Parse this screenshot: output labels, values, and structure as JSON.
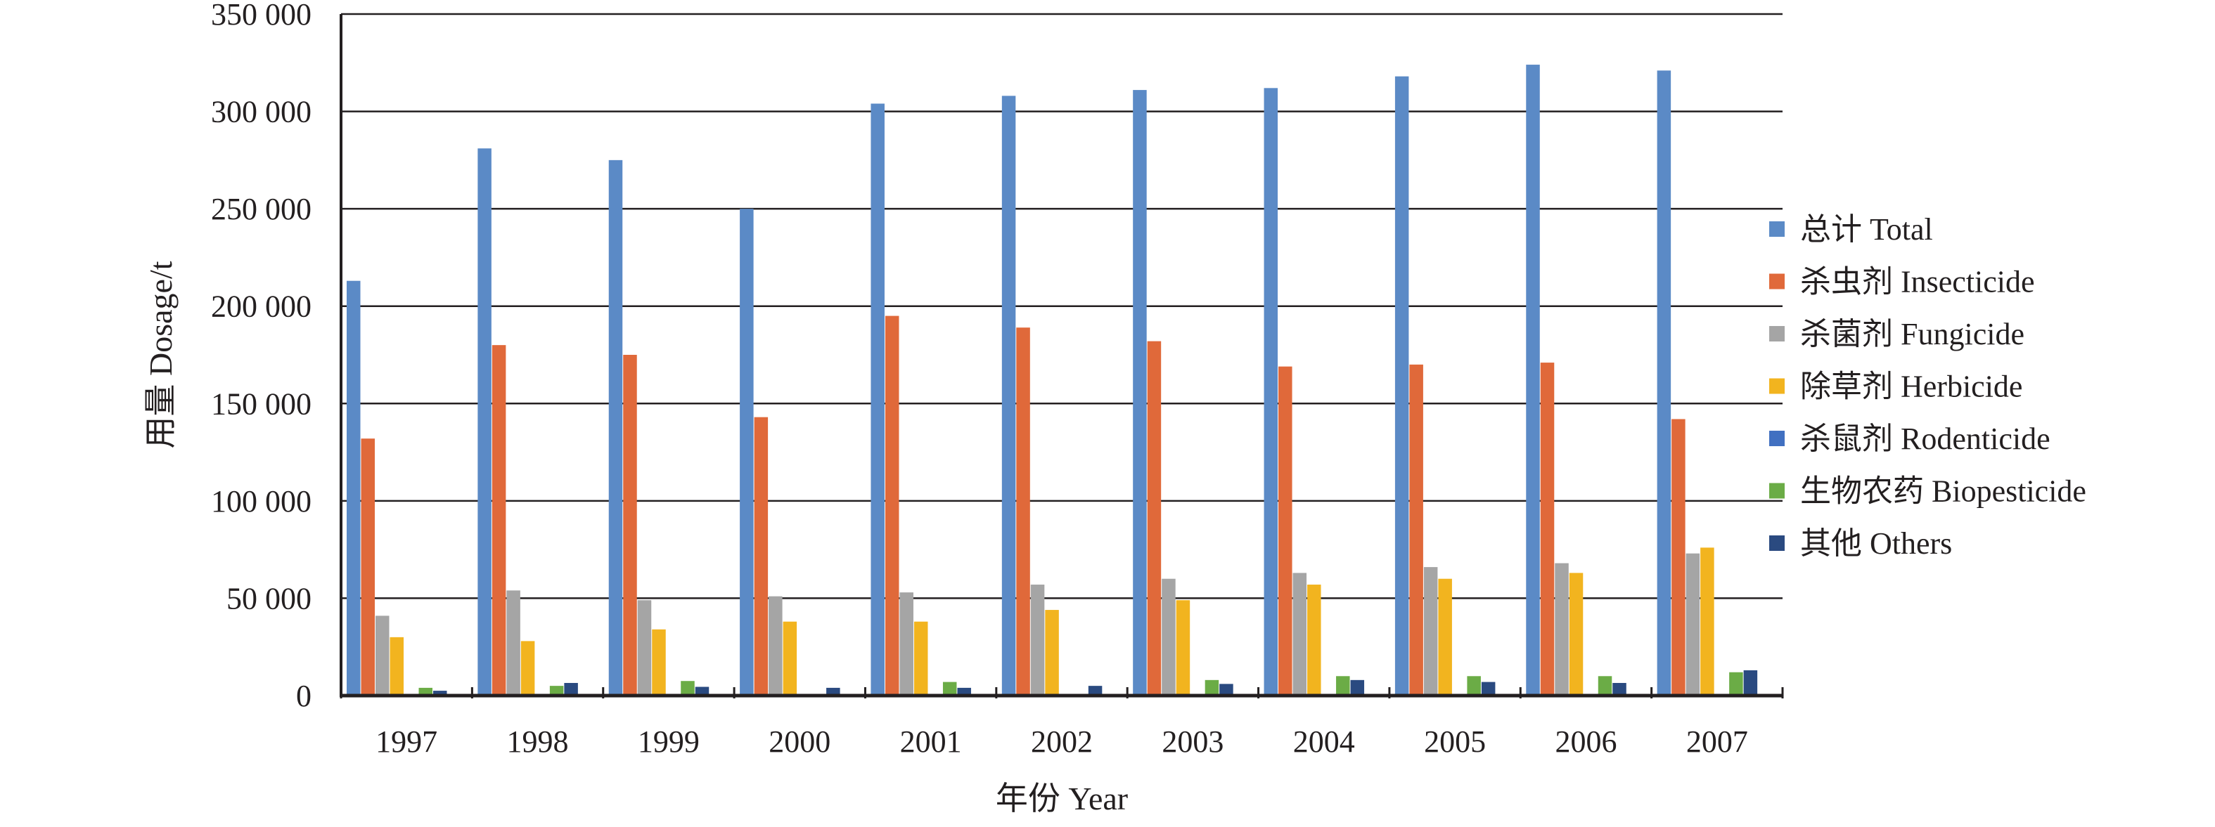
{
  "chart_data": {
    "type": "bar",
    "title": "",
    "xlabel": "年份 Year",
    "ylabel": "用量 Dosage/t",
    "ylim": [
      0,
      350000
    ],
    "yticks": [
      0,
      50000,
      100000,
      150000,
      200000,
      250000,
      300000,
      350000
    ],
    "ytick_labels": [
      "0",
      "50 000",
      "100 000",
      "150 000",
      "200 000",
      "250 000",
      "300 000",
      "350 000"
    ],
    "grid": "horizontal",
    "legend_position": "right",
    "categories": [
      "1997",
      "1998",
      "1999",
      "2000",
      "2001",
      "2002",
      "2003",
      "2004",
      "2005",
      "2006",
      "2007"
    ],
    "series": [
      {
        "name": "总计 Total",
        "color": "#5b8ac6",
        "values": [
          213000,
          281000,
          275000,
          250000,
          304000,
          308000,
          311000,
          312000,
          318000,
          324000,
          321000
        ]
      },
      {
        "name": "杀虫剂 Insecticide",
        "color": "#e0693a",
        "values": [
          132000,
          180000,
          175000,
          143000,
          195000,
          189000,
          182000,
          169000,
          170000,
          171000,
          142000
        ]
      },
      {
        "name": "杀菌剂 Fungicide",
        "color": "#a5a5a5",
        "values": [
          41000,
          54000,
          49000,
          51000,
          53000,
          57000,
          60000,
          63000,
          66000,
          68000,
          73000
        ]
      },
      {
        "name": "除草剂 Herbicide",
        "color": "#f2b41f",
        "values": [
          30000,
          28000,
          34000,
          38000,
          38000,
          44000,
          49000,
          57000,
          60000,
          63000,
          76000
        ]
      },
      {
        "name": "杀鼠剂 Rodenticide",
        "color": "#4170c1",
        "values": [
          300,
          300,
          300,
          300,
          300,
          800,
          800,
          800,
          800,
          800,
          800
        ]
      },
      {
        "name": "生物农药 Biopesticide",
        "color": "#6bac46",
        "values": [
          4000,
          5000,
          7500,
          0,
          7000,
          0,
          8000,
          10000,
          10000,
          10000,
          12000
        ]
      },
      {
        "name": "其他 Others",
        "color": "#2a4a80",
        "values": [
          2500,
          6500,
          4500,
          4000,
          4000,
          5000,
          6000,
          8000,
          7000,
          6500,
          13000
        ]
      }
    ]
  }
}
